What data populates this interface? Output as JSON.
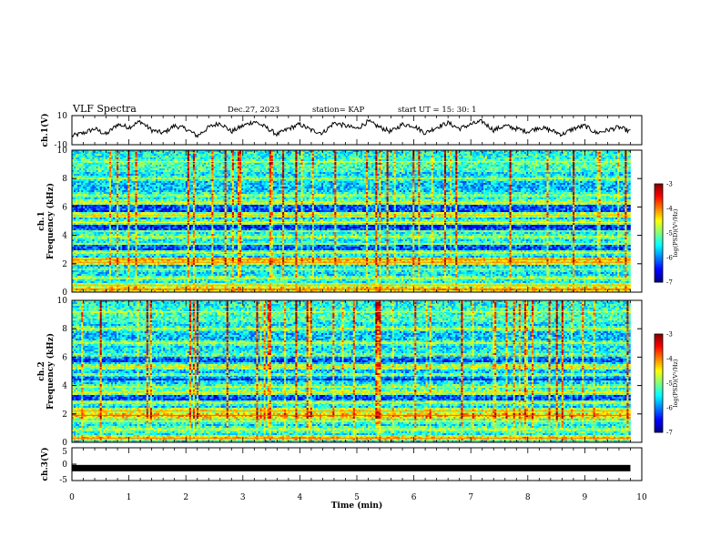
{
  "header": {
    "title": "VLF Spectra",
    "date": "Dec.27, 2023",
    "station": "station= KAP",
    "start": "start  UT  =   15: 30: 1"
  },
  "chart_data": [
    {
      "type": "line",
      "panel": "ch1-waveform",
      "ylabel": "ch.1(V)",
      "ylim": [
        -10,
        10
      ],
      "yticks": [
        "10",
        "-10"
      ],
      "x": [
        0,
        0.2,
        0.4,
        0.6,
        0.8,
        1.0,
        1.2,
        1.4,
        1.6,
        1.8,
        2.0,
        2.2,
        2.4,
        2.6,
        2.8,
        3.0,
        3.2,
        3.4,
        3.6,
        3.8,
        4.0,
        4.2,
        4.4,
        4.6,
        4.8,
        5.0,
        5.2,
        5.4,
        5.6,
        5.8,
        6.0,
        6.2,
        6.4,
        6.6,
        6.8,
        7.0,
        7.2,
        7.4,
        7.6,
        7.8,
        8.0,
        8.2,
        8.4,
        8.6,
        8.8,
        9.0,
        9.2,
        9.4,
        9.6,
        9.8
      ],
      "y": [
        -4,
        -2,
        1,
        -3,
        4,
        2,
        6,
        0,
        -2,
        3,
        1,
        -4,
        2,
        5,
        -1,
        3,
        6,
        2,
        -3,
        1,
        4,
        0,
        -2,
        5,
        3,
        1,
        6,
        2,
        -1,
        4,
        3,
        -2,
        2,
        5,
        1,
        4,
        6,
        0,
        3,
        1,
        -1,
        2,
        0,
        -3,
        1,
        3,
        -2,
        0,
        2,
        -1
      ]
    },
    {
      "type": "heatmap",
      "panel": "ch1-spectrogram",
      "ylabel": "ch.1\nFrequency (kHz)",
      "ylim": [
        0,
        10
      ],
      "yticks": [
        "0",
        "2",
        "4",
        "6",
        "8",
        "10"
      ],
      "colorbar": {
        "range": [
          -7,
          -3
        ],
        "ticks": [
          "-3",
          "-4",
          "-5",
          "-6",
          "-7"
        ],
        "label": "log(PSD)(V²/Hz)"
      },
      "bands_khz": [
        {
          "f": 0.2,
          "level": -4.2
        },
        {
          "f": 0.5,
          "level": -4.6
        },
        {
          "f": 1.0,
          "level": -5.0
        },
        {
          "f": 1.6,
          "level": -5.2
        },
        {
          "f": 2.1,
          "level": -4.4
        },
        {
          "f": 2.3,
          "level": -4.3
        },
        {
          "f": 2.8,
          "level": -5.0
        },
        {
          "f": 3.4,
          "level": -5.1
        },
        {
          "f": 3.9,
          "level": -5.0
        },
        {
          "f": 4.3,
          "level": -5.2
        },
        {
          "f": 4.9,
          "level": -4.9
        },
        {
          "f": 5.4,
          "level": -4.6
        },
        {
          "f": 6.3,
          "level": -4.8
        },
        {
          "f": 6.8,
          "level": -5.0
        },
        {
          "f": 8.0,
          "level": -5.1
        },
        {
          "f": 9.2,
          "level": -5.0
        }
      ]
    },
    {
      "type": "heatmap",
      "panel": "ch2-spectrogram",
      "ylabel": "ch.2\nFrequency (kHz)",
      "ylim": [
        0,
        10
      ],
      "yticks": [
        "0",
        "2",
        "4",
        "6",
        "8",
        "10"
      ],
      "colorbar": {
        "range": [
          -7,
          -3
        ],
        "ticks": [
          "-3",
          "-4",
          "-5",
          "-6",
          "-7"
        ],
        "label": "log(PSD)(V²/Hz)"
      },
      "bands_khz": [
        {
          "f": 0.3,
          "level": -4.3
        },
        {
          "f": 0.9,
          "level": -4.9
        },
        {
          "f": 1.5,
          "level": -5.0
        },
        {
          "f": 1.9,
          "level": -4.2
        },
        {
          "f": 2.2,
          "level": -4.5
        },
        {
          "f": 2.8,
          "level": -5.0
        },
        {
          "f": 3.5,
          "level": -4.8
        },
        {
          "f": 3.9,
          "level": -5.0
        },
        {
          "f": 4.7,
          "level": -4.9
        },
        {
          "f": 5.3,
          "level": -4.7
        },
        {
          "f": 6.1,
          "level": -4.9
        },
        {
          "f": 7.0,
          "level": -5.0
        },
        {
          "f": 8.0,
          "level": -5.0
        },
        {
          "f": 9.2,
          "level": -5.0
        }
      ]
    },
    {
      "type": "line",
      "panel": "ch3-waveform",
      "ylabel": "ch.3(V)",
      "ylim": [
        -5,
        5
      ],
      "yticks": [
        "5",
        "0",
        "-5"
      ],
      "x": [
        0,
        9.8
      ],
      "y": [
        -1.2,
        -1.2
      ]
    }
  ],
  "xaxis": {
    "label": "Time  (min)",
    "range": [
      0,
      10
    ],
    "ticks": [
      "0",
      "1",
      "2",
      "3",
      "4",
      "5",
      "6",
      "7",
      "8",
      "9",
      "10"
    ]
  }
}
